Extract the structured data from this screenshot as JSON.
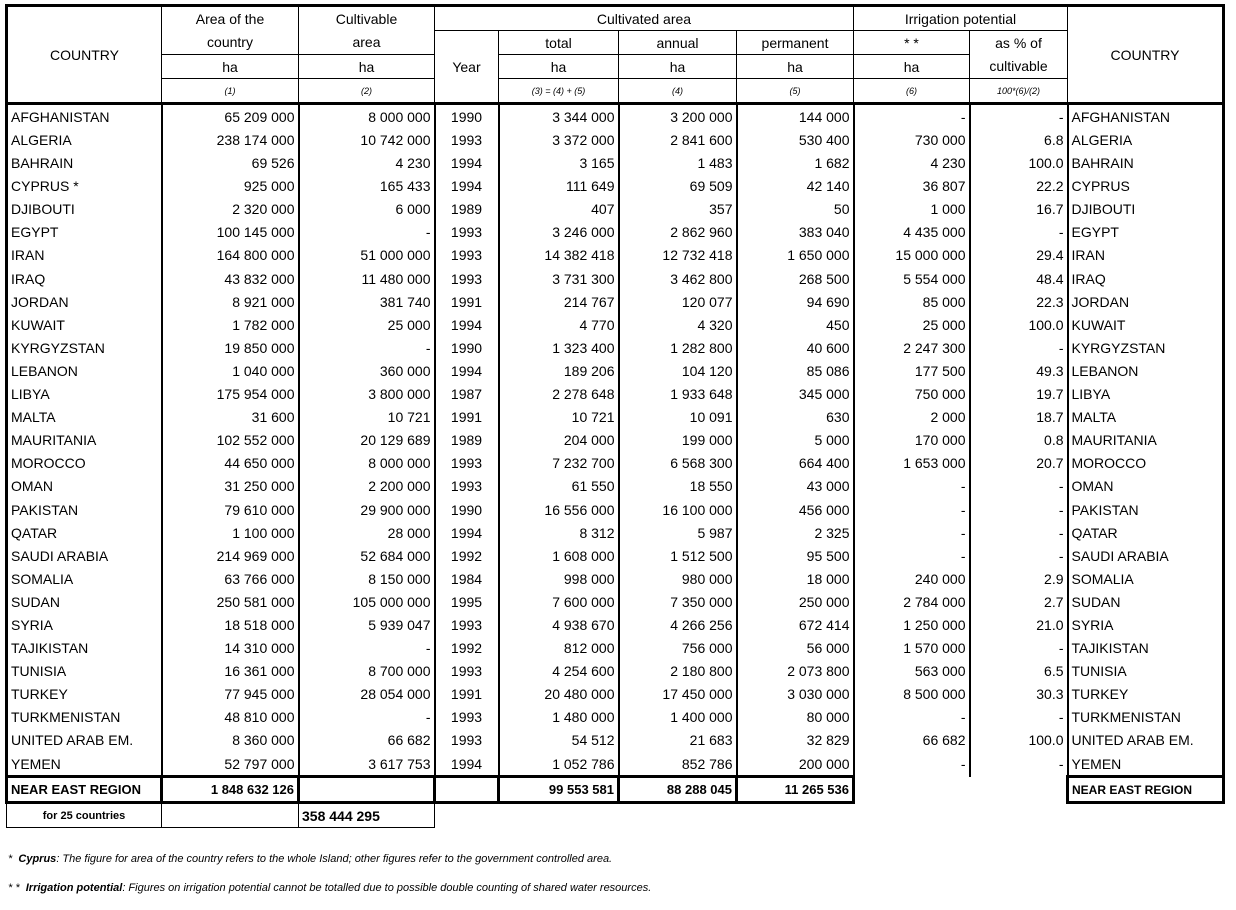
{
  "header": {
    "country": "COUNTRY",
    "area_l1": "Area of the",
    "area_l2": "country",
    "cultivable_l1": "Cultivable",
    "cultivable_l2": "area",
    "cultivated": "Cultivated area",
    "year": "Year",
    "total": "total",
    "annual": "annual",
    "permanent": "permanent",
    "irrigation": "Irrigation potential",
    "irr_stars": "* *",
    "pct_l1": "as % of",
    "pct_l2": "cultivable",
    "unit": "ha",
    "f1": "(1)",
    "f2": "(2)",
    "f3": "(3) = (4) + (5)",
    "f4": "(4)",
    "f5": "(5)",
    "f6": "(6)",
    "f7": "100*(6)/(2)",
    "country_right": "COUNTRY"
  },
  "rows": [
    [
      "AFGHANISTAN",
      "65 209 000",
      "8 000 000",
      "1990",
      "3 344 000",
      "3 200 000",
      "144 000",
      "-",
      "-",
      "AFGHANISTAN"
    ],
    [
      "ALGERIA",
      "238 174 000",
      "10 742 000",
      "1993",
      "3 372 000",
      "2 841 600",
      "530 400",
      "730 000",
      "6.8",
      "ALGERIA"
    ],
    [
      "BAHRAIN",
      "69 526",
      "4 230",
      "1994",
      "3 165",
      "1 483",
      "1 682",
      "4 230",
      "100.0",
      "BAHRAIN"
    ],
    [
      "CYPRUS  *",
      "925 000",
      "165 433",
      "1994",
      "111 649",
      "69 509",
      "42 140",
      "36 807",
      "22.2",
      "CYPRUS"
    ],
    [
      "DJIBOUTI",
      "2 320 000",
      "6 000",
      "1989",
      "407",
      "357",
      "50",
      "1 000",
      "16.7",
      "DJIBOUTI"
    ],
    [
      "EGYPT",
      "100 145 000",
      "-",
      "1993",
      "3 246 000",
      "2 862 960",
      "383 040",
      "4 435 000",
      "-",
      "EGYPT"
    ],
    [
      "IRAN",
      "164 800 000",
      "51 000 000",
      "1993",
      "14 382 418",
      "12 732 418",
      "1 650 000",
      "15 000 000",
      "29.4",
      "IRAN"
    ],
    [
      "IRAQ",
      "43 832 000",
      "11 480 000",
      "1993",
      "3 731 300",
      "3 462 800",
      "268 500",
      "5 554 000",
      "48.4",
      "IRAQ"
    ],
    [
      "JORDAN",
      "8 921 000",
      "381 740",
      "1991",
      "214 767",
      "120 077",
      "94 690",
      "85 000",
      "22.3",
      "JORDAN"
    ],
    [
      "KUWAIT",
      "1 782 000",
      "25 000",
      "1994",
      "4 770",
      "4 320",
      "450",
      "25 000",
      "100.0",
      "KUWAIT"
    ],
    [
      "KYRGYZSTAN",
      "19 850 000",
      "-",
      "1990",
      "1 323 400",
      "1 282 800",
      "40 600",
      "2 247 300",
      "-",
      "KYRGYZSTAN"
    ],
    [
      "LEBANON",
      "1 040 000",
      "360 000",
      "1994",
      "189 206",
      "104 120",
      "85 086",
      "177 500",
      "49.3",
      "LEBANON"
    ],
    [
      "LIBYA",
      "175 954 000",
      "3 800 000",
      "1987",
      "2 278 648",
      "1 933 648",
      "345 000",
      "750 000",
      "19.7",
      "LIBYA"
    ],
    [
      "MALTA",
      "31 600",
      "10 721",
      "1991",
      "10 721",
      "10 091",
      "630",
      "2 000",
      "18.7",
      "MALTA"
    ],
    [
      "MAURITANIA",
      "102 552 000",
      "20 129 689",
      "1989",
      "204 000",
      "199 000",
      "5 000",
      "170 000",
      "0.8",
      "MAURITANIA"
    ],
    [
      "MOROCCO",
      "44 650 000",
      "8 000 000",
      "1993",
      "7 232 700",
      "6 568 300",
      "664 400",
      "1 653 000",
      "20.7",
      "MOROCCO"
    ],
    [
      "OMAN",
      "31 250 000",
      "2 200 000",
      "1993",
      "61 550",
      "18 550",
      "43 000",
      "-",
      "-",
      "OMAN"
    ],
    [
      "PAKISTAN",
      "79 610 000",
      "29 900 000",
      "1990",
      "16 556 000",
      "16 100 000",
      "456 000",
      "-",
      "-",
      "PAKISTAN"
    ],
    [
      "QATAR",
      "1 100 000",
      "28 000",
      "1994",
      "8 312",
      "5 987",
      "2 325",
      "-",
      "-",
      "QATAR"
    ],
    [
      "SAUDI ARABIA",
      "214 969 000",
      "52 684 000",
      "1992",
      "1 608 000",
      "1 512 500",
      "95 500",
      "-",
      "-",
      "SAUDI ARABIA"
    ],
    [
      "SOMALIA",
      "63 766 000",
      "8 150 000",
      "1984",
      "998 000",
      "980 000",
      "18 000",
      "240 000",
      "2.9",
      "SOMALIA"
    ],
    [
      "SUDAN",
      "250 581 000",
      "105 000 000",
      "1995",
      "7 600 000",
      "7 350 000",
      "250 000",
      "2 784 000",
      "2.7",
      "SUDAN"
    ],
    [
      "SYRIA",
      "18 518 000",
      "5 939 047",
      "1993",
      "4 938 670",
      "4 266 256",
      "672 414",
      "1 250 000",
      "21.0",
      "SYRIA"
    ],
    [
      "TAJIKISTAN",
      "14 310 000",
      "-",
      "1992",
      "812 000",
      "756 000",
      "56 000",
      "1 570 000",
      "-",
      "TAJIKISTAN"
    ],
    [
      "TUNISIA",
      "16 361 000",
      "8 700 000",
      "1993",
      "4 254 600",
      "2 180 800",
      "2 073 800",
      "563 000",
      "6.5",
      "TUNISIA"
    ],
    [
      "TURKEY",
      "77 945 000",
      "28 054 000",
      "1991",
      "20 480 000",
      "17 450 000",
      "3 030 000",
      "8 500 000",
      "30.3",
      "TURKEY"
    ],
    [
      "TURKMENISTAN",
      "48 810 000",
      "-",
      "1993",
      "1 480 000",
      "1 400 000",
      "80 000",
      "-",
      "-",
      "TURKMENISTAN"
    ],
    [
      "UNITED ARAB EM.",
      "8 360 000",
      "66 682",
      "1993",
      "54 512",
      "21 683",
      "32 829",
      "66 682",
      "100.0",
      "UNITED ARAB EM."
    ],
    [
      "YEMEN",
      "52 797 000",
      "3 617 753",
      "1994",
      "1 052 786",
      "852 786",
      "200 000",
      "-",
      "-",
      "YEMEN"
    ]
  ],
  "region": {
    "label": "NEAR EAST REGION",
    "area": "1 848 632 126",
    "total": "99 553 581",
    "annual": "88 288 045",
    "permanent": "11 265 536",
    "label_right": "NEAR EAST REGION"
  },
  "subtotal": {
    "label": "for 25 countries",
    "cultivable": "358 444 295"
  },
  "footnotes": {
    "n1_mark": "*",
    "n1_lead": "Cyprus",
    "n1_text": ": The figure for area of the country refers to the whole Island; other figures refer to the government controlled area.",
    "n2_mark": "* *",
    "n2_lead": "Irrigation potential",
    "n2_text": ": Figures on irrigation potential cannot be totalled due to possible double counting of shared water resources."
  }
}
